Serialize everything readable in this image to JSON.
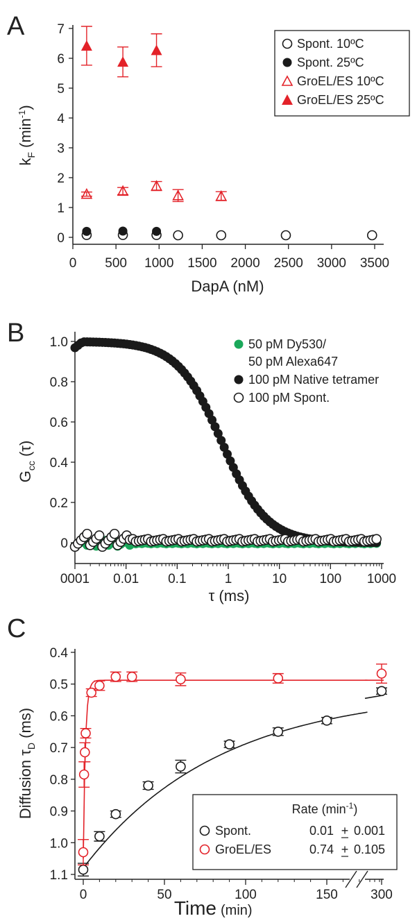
{
  "colors": {
    "red": "#e32229",
    "black": "#1a1a1a",
    "green": "#1aa85a",
    "axis": "#222222"
  },
  "chart_data": [
    {
      "panel": "A",
      "type": "scatter",
      "xlabel": "DapA (nM)",
      "ylabel_main": "k",
      "ylabel_sub": "F",
      "ylabel_unit": "(min",
      "ylabel_unit_sup": "-1",
      "ylabel_unit_end": ")",
      "xlim": [
        0,
        3500
      ],
      "ylim": [
        0,
        7
      ],
      "xticks": [
        0,
        500,
        1000,
        1500,
        2000,
        2500,
        3000,
        3500
      ],
      "yticks": [
        0,
        1,
        2,
        3,
        4,
        5,
        6,
        7
      ],
      "legend_position": "top-right",
      "series": [
        {
          "name": "Spont. 10ºC",
          "marker": "open-circle",
          "color": "#1a1a1a",
          "points": [
            [
              160,
              0.08
            ],
            [
              580,
              0.08
            ],
            [
              970,
              0.08
            ],
            [
              1220,
              0.07
            ],
            [
              1720,
              0.07
            ],
            [
              2470,
              0.07
            ],
            [
              3470,
              0.07
            ]
          ]
        },
        {
          "name": "Spont. 25ºC",
          "marker": "filled-circle",
          "color": "#1a1a1a",
          "points": [
            [
              160,
              0.2
            ],
            [
              580,
              0.21
            ],
            [
              970,
              0.2
            ]
          ]
        },
        {
          "name": "GroEL/ES 10ºC",
          "marker": "open-triangle",
          "color": "#e32229",
          "points": [
            [
              160,
              1.45,
              0.07
            ],
            [
              580,
              1.55,
              0.12
            ],
            [
              970,
              1.72,
              0.15
            ],
            [
              1220,
              1.4,
              0.2
            ],
            [
              1720,
              1.38,
              0.15
            ]
          ]
        },
        {
          "name": "GroEL/ES 25ºC",
          "marker": "filled-triangle",
          "color": "#e32229",
          "points": [
            [
              160,
              6.42,
              0.65
            ],
            [
              580,
              5.88,
              0.5
            ],
            [
              970,
              6.27,
              0.55
            ]
          ]
        }
      ]
    },
    {
      "panel": "B",
      "type": "scatter",
      "x_scale": "log",
      "xlabel": "τ (ms)",
      "ylabel_main": "G",
      "ylabel_sub": "cc",
      "ylabel_rest": " (τ)",
      "xlim": [
        0.001,
        1000
      ],
      "ylim": [
        -0.05,
        1.05
      ],
      "xtick_labels": [
        "0001",
        "0.01",
        "0.1",
        "1",
        "10",
        "100",
        "1000"
      ],
      "ytick_labels": [
        "0",
        "0.2",
        "0.4",
        "0.6",
        "0.8",
        "1.0"
      ],
      "yticks": [
        0,
        0.2,
        0.4,
        0.6,
        0.8,
        1.0
      ],
      "legend_position": "top-right",
      "series": [
        {
          "name_lines": [
            "50 pM Dy530/",
            "50 pM Alexa647"
          ],
          "marker": "filled-circle",
          "color": "#1aa85a",
          "curve": "flat",
          "level": 0.0
        },
        {
          "name_lines": [
            "100 pM Native tetramer"
          ],
          "marker": "filled-circle",
          "color": "#1a1a1a",
          "curve": "decay",
          "tau_ms": 0.7,
          "plateau": 1.0
        },
        {
          "name_lines": [
            "100 pM Spont."
          ],
          "marker": "open-circle",
          "color": "#1a1a1a",
          "curve": "flat",
          "level": 0.01
        }
      ]
    },
    {
      "panel": "C",
      "type": "scatter",
      "xlabel": "Time",
      "xlabel_unit": "(min)",
      "ylabel_main": "Diffusion τ",
      "ylabel_sub": "D",
      "ylabel_rest": " (ms)",
      "y_inverted": true,
      "ylim": [
        0.4,
        1.1
      ],
      "yticks": [
        0.4,
        0.5,
        0.6,
        0.7,
        0.8,
        0.9,
        1.0,
        1.1
      ],
      "ytick_labels": [
        "0.4",
        "0.5",
        "0.6",
        "0.7",
        "0.8",
        "0.9",
        "1.0",
        "1.1"
      ],
      "xlim": [
        -5,
        175
      ],
      "xticks": [
        0,
        50,
        100,
        150
      ],
      "xtick_labels": [
        "0",
        "50",
        "100",
        "150"
      ],
      "broken_axis_tick": {
        "value": 300,
        "label": "300"
      },
      "legend_position": "bottom-right",
      "legend_header": "Rate (min",
      "legend_header_sup": "-1",
      "legend_header_end": ")",
      "series": [
        {
          "name": "Spont.",
          "rate": "0.01",
          "pm": "+",
          "err": "0.001",
          "color": "#1a1a1a",
          "fit": {
            "y0": 1.08,
            "yinf": 0.52,
            "k": 0.01
          },
          "points": [
            [
              0,
              1.085,
              0.02
            ],
            [
              10,
              0.98,
              0.015
            ],
            [
              20,
              0.91,
              0.01
            ],
            [
              40,
              0.82,
              0.012
            ],
            [
              60,
              0.76,
              0.02
            ],
            [
              90,
              0.69,
              0.01
            ],
            [
              120,
              0.65,
              0.012
            ],
            [
              150,
              0.615,
              0.01
            ]
          ],
          "post_break": [
            [
              300,
              0.522,
              0.01
            ]
          ]
        },
        {
          "name": "GroEL/ES",
          "rate": "0.74",
          "pm": "+",
          "err": "0.105",
          "color": "#e32229",
          "fit": {
            "y0": 1.05,
            "yinf": 0.488,
            "k": 0.74
          },
          "points": [
            [
              0,
              1.03,
              0.04
            ],
            [
              0.5,
              0.785,
              0.04
            ],
            [
              1,
              0.715,
              0.03
            ],
            [
              1.5,
              0.655,
              0.015
            ],
            [
              5,
              0.527,
              0.012
            ],
            [
              10,
              0.505,
              0.015
            ],
            [
              20,
              0.477,
              0.015
            ],
            [
              30,
              0.477,
              0.015
            ],
            [
              60,
              0.485,
              0.02
            ],
            [
              120,
              0.482,
              0.015
            ]
          ],
          "post_break": [
            [
              300,
              0.467,
              0.03
            ]
          ]
        }
      ]
    }
  ]
}
